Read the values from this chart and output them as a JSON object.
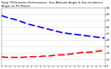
{
  "title": "Solar PV/Inverter Performance  Sun Altitude Angle & Sun Incidence Angle on PV Panels",
  "blue_x": [
    0,
    5,
    10,
    15,
    20,
    25,
    30,
    35,
    40,
    45,
    50,
    55,
    60,
    65,
    70,
    75,
    80,
    85,
    90,
    95,
    100
  ],
  "blue_y": [
    78,
    75,
    73,
    71,
    68,
    65,
    63,
    61,
    59,
    57,
    55,
    53,
    51,
    50,
    49,
    48,
    47,
    46,
    45,
    44,
    43
  ],
  "red_x": [
    0,
    5,
    10,
    15,
    20,
    25,
    30,
    35,
    40,
    45,
    50,
    55,
    60,
    65,
    70,
    75,
    80,
    85,
    90,
    95,
    100
  ],
  "red_y": [
    14,
    13,
    13,
    13,
    13,
    14,
    14,
    14,
    15,
    15,
    16,
    17,
    17,
    18,
    19,
    20,
    21,
    21,
    22,
    23,
    24
  ],
  "blue_color": "#0000ff",
  "red_color": "#ff0000",
  "bg_color": "#ffffff",
  "ylim": [
    0,
    90
  ],
  "xlim": [
    0,
    100
  ],
  "yticks": [
    0,
    10,
    20,
    30,
    40,
    50,
    60,
    70,
    80,
    90
  ],
  "ytick_labels": [
    "0",
    "10",
    "20",
    "30",
    "40",
    "50",
    "60",
    "70",
    "80",
    "90"
  ],
  "grid_color": "#b0b0b0",
  "title_fontsize": 3.2,
  "tick_fontsize": 2.5,
  "linewidth": 1.4,
  "dash_on": 5,
  "dash_off": 2
}
